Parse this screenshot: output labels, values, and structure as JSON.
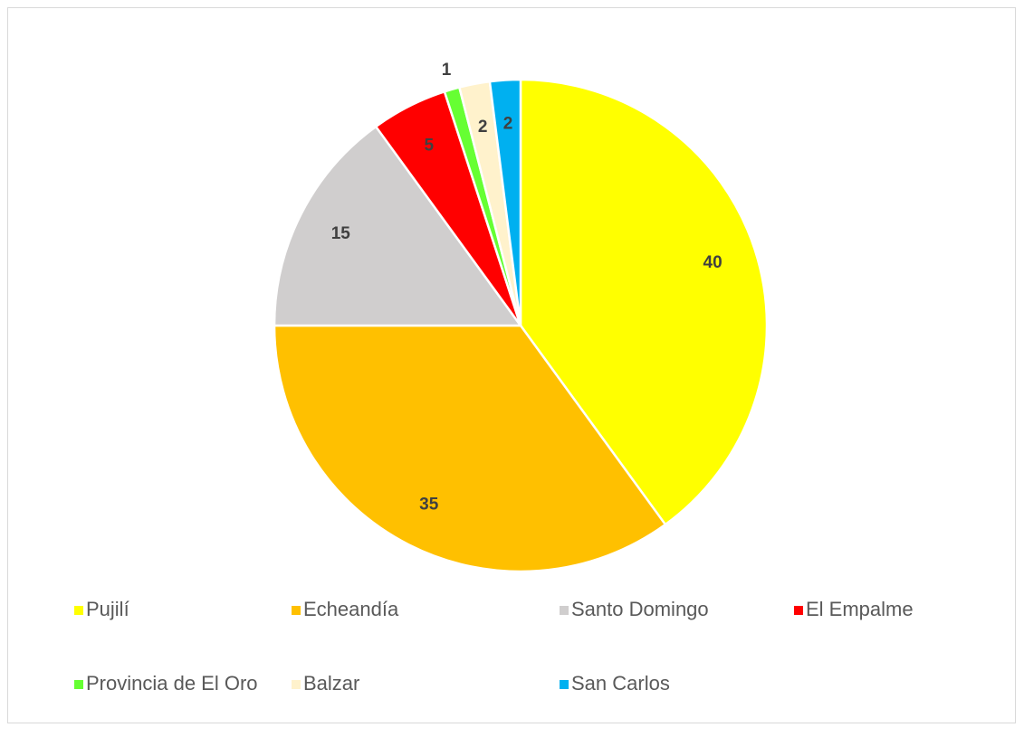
{
  "chart_data": {
    "type": "pie",
    "categories": [
      "Pujilí",
      "Echeandía",
      "Santo Domingo",
      "El Empalme",
      "Provincia de El Oro",
      "Balzar",
      "San Carlos"
    ],
    "values": [
      40,
      35,
      15,
      5,
      1,
      2,
      2
    ],
    "colors": [
      "#ffff00",
      "#ffc000",
      "#d0cece",
      "#ff0000",
      "#66ff33",
      "#fff2cc",
      "#00b0f0"
    ],
    "legend": "bottom"
  }
}
